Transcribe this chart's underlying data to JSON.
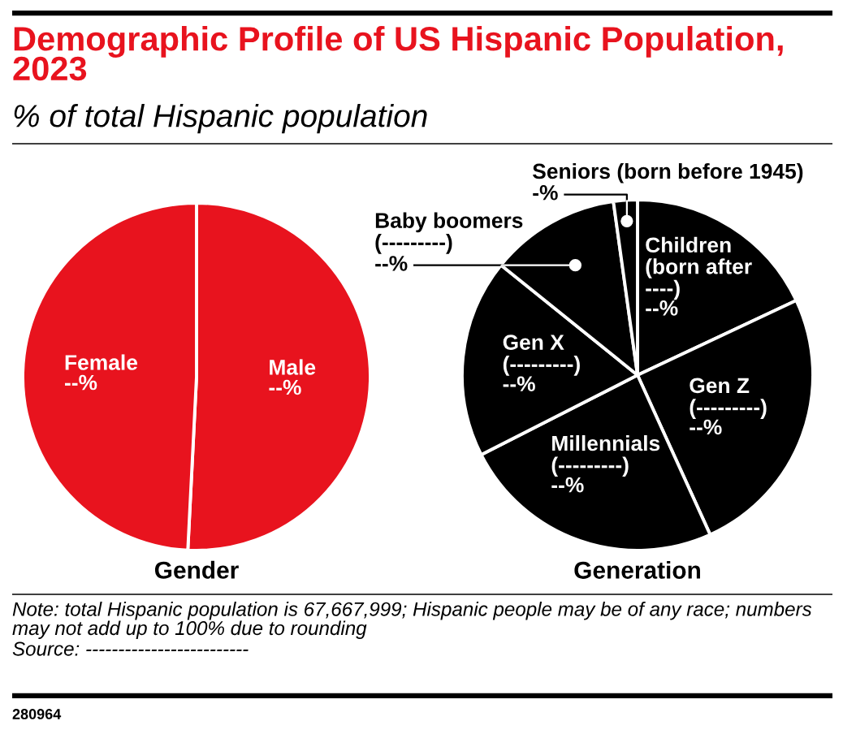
{
  "chart_data": [
    {
      "type": "pie",
      "title": "Demographic Profile of US Hispanic Population, 2023",
      "subtitle": "% of total Hispanic population",
      "xlabel": "Gender",
      "categories": [
        "Male",
        "Female"
      ],
      "values": [
        50.8,
        49.2
      ],
      "colors": [
        "#e8131e",
        "#e8131e"
      ],
      "value_labels": [
        "--%",
        "--%"
      ],
      "annotations": [
        "Note: total Hispanic population is 67,667,999; Hispanic people may be of any race; numbers may not add up to 100% due to rounding",
        "Source: -------------------------",
        "280964"
      ]
    },
    {
      "type": "pie",
      "xlabel": "Generation",
      "categories": [
        "Children\n(born after\n----)",
        "Gen Z\n(---------)",
        "Millennials\n(---------)",
        "Gen X\n(---------)",
        "Baby boomers\n(---------)",
        "Seniors (born before 1945)"
      ],
      "values": [
        18.0,
        25.2,
        24.3,
        18.3,
        12.0,
        2.2
      ],
      "colors": [
        "#000000",
        "#000000",
        "#000000",
        "#000000",
        "#000000",
        "#000000"
      ],
      "value_labels": [
        "--%",
        "--%",
        "--%",
        "--%",
        "--%",
        "-%"
      ]
    }
  ]
}
